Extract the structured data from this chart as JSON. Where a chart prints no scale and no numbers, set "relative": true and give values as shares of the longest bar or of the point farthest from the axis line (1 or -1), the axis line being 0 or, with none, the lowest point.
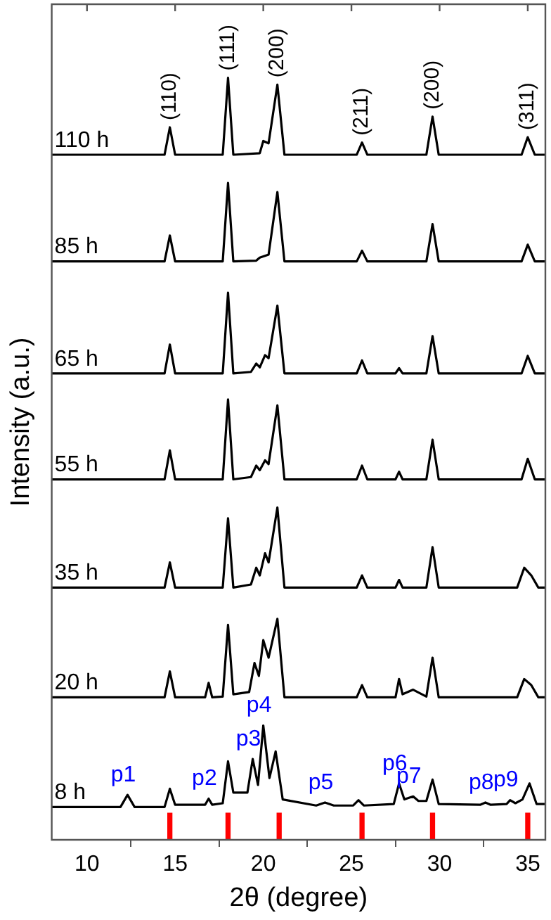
{
  "chart_data": {
    "type": "line",
    "relative": true,
    "xlabel": "2θ (degree)",
    "ylabel": "Intensity (a.u.)",
    "xlim": [
      8,
      36
    ],
    "xticks": [
      10,
      15,
      20,
      25,
      30,
      35
    ],
    "grid": false,
    "legend": false,
    "marker": "none",
    "line_style": "solid",
    "series": [
      {
        "name": "110 h",
        "color": "#000000",
        "x": [
          8,
          14.4,
          14.7,
          15.0,
          17.7,
          18.0,
          18.3,
          19.8,
          20.0,
          20.3,
          20.8,
          21.2,
          25.3,
          25.6,
          25.9,
          29.25,
          29.6,
          29.95,
          34.65,
          35.0,
          35.4,
          36
        ],
        "values": [
          0.899,
          0.899,
          0.935,
          0.899,
          0.899,
          1.0,
          0.899,
          0.901,
          0.917,
          0.914,
          0.991,
          0.899,
          0.899,
          0.915,
          0.899,
          0.899,
          0.949,
          0.899,
          0.899,
          0.922,
          0.899,
          0.899
        ]
      },
      {
        "name": "85 h",
        "color": "#000000",
        "x": [
          8,
          14.4,
          14.7,
          15.0,
          17.7,
          18.0,
          18.3,
          19.6,
          19.8,
          20.3,
          20.8,
          21.2,
          25.3,
          25.6,
          25.9,
          29.25,
          29.6,
          29.95,
          34.65,
          35.0,
          35.4,
          36
        ],
        "values": [
          0.759,
          0.759,
          0.793,
          0.759,
          0.759,
          0.862,
          0.759,
          0.76,
          0.764,
          0.768,
          0.85,
          0.759,
          0.759,
          0.773,
          0.759,
          0.759,
          0.808,
          0.759,
          0.759,
          0.781,
          0.759,
          0.759
        ]
      },
      {
        "name": "65 h",
        "color": "#000000",
        "x": [
          8,
          14.4,
          14.7,
          15.0,
          17.7,
          18.0,
          18.3,
          19.3,
          19.6,
          19.8,
          20.1,
          20.3,
          20.8,
          21.2,
          25.3,
          25.6,
          25.9,
          27.5,
          27.7,
          27.9,
          29.25,
          29.6,
          29.95,
          34.65,
          35.0,
          35.4,
          36
        ],
        "values": [
          0.612,
          0.612,
          0.65,
          0.612,
          0.612,
          0.718,
          0.612,
          0.614,
          0.625,
          0.62,
          0.636,
          0.632,
          0.701,
          0.612,
          0.612,
          0.629,
          0.612,
          0.612,
          0.619,
          0.612,
          0.612,
          0.661,
          0.612,
          0.612,
          0.635,
          0.612,
          0.612
        ]
      },
      {
        "name": "55 h",
        "color": "#000000",
        "x": [
          8,
          14.4,
          14.7,
          15.0,
          17.7,
          18.0,
          18.3,
          19.3,
          19.6,
          19.8,
          20.1,
          20.3,
          20.8,
          21.2,
          25.3,
          25.6,
          25.9,
          27.5,
          27.7,
          27.9,
          29.25,
          29.6,
          29.95,
          34.65,
          35.0,
          35.4,
          36
        ],
        "values": [
          0.473,
          0.473,
          0.511,
          0.473,
          0.473,
          0.578,
          0.473,
          0.476,
          0.491,
          0.485,
          0.498,
          0.493,
          0.57,
          0.473,
          0.473,
          0.491,
          0.473,
          0.473,
          0.483,
          0.473,
          0.473,
          0.525,
          0.473,
          0.473,
          0.5,
          0.473,
          0.473
        ]
      },
      {
        "name": "35 h",
        "color": "#000000",
        "x": [
          8,
          14.4,
          14.7,
          15.0,
          17.7,
          18.0,
          18.3,
          19.3,
          19.6,
          19.8,
          20.1,
          20.3,
          20.8,
          21.2,
          25.3,
          25.6,
          25.9,
          27.5,
          27.7,
          27.9,
          29.25,
          29.6,
          29.95,
          34.4,
          34.8,
          35.2,
          35.6,
          36
        ],
        "values": [
          0.331,
          0.331,
          0.364,
          0.331,
          0.331,
          0.422,
          0.331,
          0.335,
          0.357,
          0.347,
          0.376,
          0.364,
          0.436,
          0.331,
          0.331,
          0.347,
          0.331,
          0.331,
          0.341,
          0.331,
          0.331,
          0.384,
          0.331,
          0.331,
          0.357,
          0.347,
          0.331,
          0.331
        ]
      },
      {
        "name": "20 h",
        "color": "#000000",
        "x": [
          8,
          14.4,
          14.7,
          15.0,
          16.7,
          16.9,
          17.1,
          17.7,
          18.0,
          18.3,
          19.2,
          19.5,
          19.75,
          20.0,
          20.3,
          20.8,
          21.2,
          25.3,
          25.6,
          25.9,
          27.5,
          27.7,
          27.9,
          28.5,
          29.25,
          29.6,
          29.95,
          34.4,
          34.8,
          35.2,
          35.6,
          36
        ],
        "values": [
          0.187,
          0.187,
          0.221,
          0.187,
          0.187,
          0.206,
          0.187,
          0.188,
          0.282,
          0.191,
          0.194,
          0.232,
          0.215,
          0.262,
          0.239,
          0.29,
          0.187,
          0.187,
          0.203,
          0.187,
          0.187,
          0.211,
          0.191,
          0.197,
          0.188,
          0.239,
          0.187,
          0.187,
          0.211,
          0.203,
          0.187,
          0.187
        ]
      },
      {
        "name": "8 h",
        "color": "#000000",
        "x": [
          8,
          11.9,
          12.3,
          12.7,
          14.4,
          14.7,
          15.0,
          16.7,
          16.9,
          17.1,
          17.7,
          18.0,
          18.3,
          19.1,
          19.4,
          19.7,
          20.0,
          20.35,
          20.7,
          21.1,
          23.0,
          23.5,
          24.0,
          25.1,
          25.4,
          25.7,
          27.4,
          27.7,
          28.0,
          28.5,
          28.8,
          29.25,
          29.6,
          29.95,
          32.3,
          32.6,
          32.9,
          33.8,
          34.0,
          34.3,
          34.7,
          35.1,
          35.5,
          36
        ],
        "values": [
          0.043,
          0.043,
          0.059,
          0.043,
          0.043,
          0.067,
          0.046,
          0.046,
          0.054,
          0.046,
          0.048,
          0.103,
          0.062,
          0.062,
          0.106,
          0.072,
          0.15,
          0.081,
          0.116,
          0.053,
          0.045,
          0.049,
          0.045,
          0.045,
          0.052,
          0.045,
          0.047,
          0.074,
          0.053,
          0.057,
          0.051,
          0.051,
          0.079,
          0.047,
          0.046,
          0.049,
          0.046,
          0.047,
          0.052,
          0.048,
          0.053,
          0.074,
          0.047,
          0.047
        ]
      },
      {
        "type": "bar",
        "color": "#ff0000",
        "x": [
          14.7,
          18.0,
          20.9,
          25.6,
          29.6,
          35.0
        ],
        "values": [
          0.035,
          0.035,
          0.035,
          0.035,
          0.035,
          0.035
        ]
      }
    ],
    "annotations": [
      {
        "text": "(110)",
        "x": 14.7,
        "y": 0.935
      },
      {
        "text": "(111)",
        "x": 18.0,
        "y": 1.0
      },
      {
        "text": "(200)",
        "x": 20.8,
        "y": 0.991
      },
      {
        "text": "(211)",
        "x": 25.6,
        "y": 0.915
      },
      {
        "text": "(200)",
        "x": 29.6,
        "y": 0.949
      },
      {
        "text": "(311)",
        "x": 35.0,
        "y": 0.922
      },
      {
        "text": "p1",
        "x": 12.3,
        "y": 0.059
      },
      {
        "text": "p2",
        "x": 16.9,
        "y": 0.054
      },
      {
        "text": "p3",
        "x": 19.4,
        "y": 0.106
      },
      {
        "text": "p4",
        "x": 20.0,
        "y": 0.15
      },
      {
        "text": "p5",
        "x": 23.5,
        "y": 0.049
      },
      {
        "text": "p6",
        "x": 27.7,
        "y": 0.074
      },
      {
        "text": "p7",
        "x": 28.5,
        "y": 0.057
      },
      {
        "text": "p8",
        "x": 32.6,
        "y": 0.049
      },
      {
        "text": "p9",
        "x": 34.0,
        "y": 0.052
      }
    ]
  }
}
